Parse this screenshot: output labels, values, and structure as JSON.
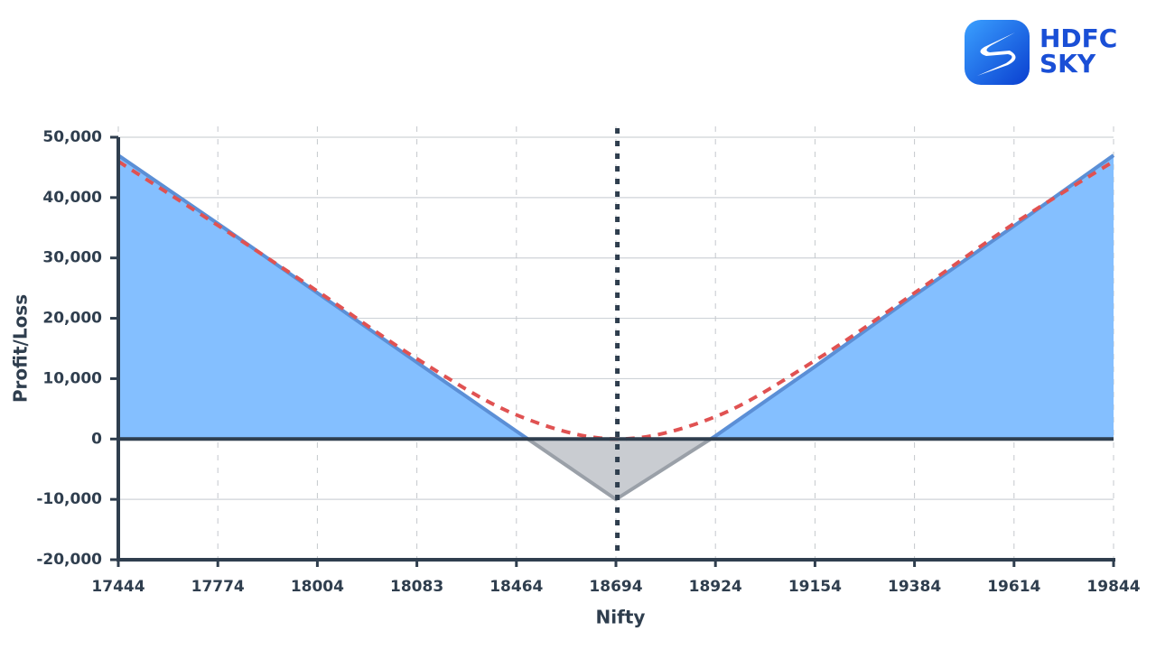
{
  "logo": {
    "line1": "HDFC",
    "line2": "SKY"
  },
  "chart_data": {
    "type": "line",
    "xlabel": "Nifty",
    "ylabel": "Profit/Loss",
    "categories": [
      "17444",
      "17774",
      "18004",
      "18083",
      "18464",
      "18694",
      "18924",
      "19154",
      "19384",
      "19614",
      "19844"
    ],
    "series": [
      {
        "color": "#5b8fd6",
        "fill": "#84bfff",
        "loss_color": "#9aa0a8",
        "loss_fill": "#c9ccd1",
        "style": "solid",
        "values": [
          47000,
          35700,
          24200,
          12700,
          1300,
          -10000,
          500,
          12000,
          23800,
          35300,
          47000
        ]
      },
      {
        "color": "#e05252",
        "style": "dashed",
        "values": [
          46000,
          35400,
          24500,
          13300,
          4000,
          0,
          3700,
          13000,
          24200,
          35700,
          46000
        ]
      }
    ],
    "ylim": [
      -20000,
      50000
    ],
    "yticks": [
      {
        "value": 50000,
        "label": "50,000"
      },
      {
        "value": 40000,
        "label": "40,000"
      },
      {
        "value": 30000,
        "label": "30,000"
      },
      {
        "value": 20000,
        "label": "20,000"
      },
      {
        "value": 10000,
        "label": "10,000"
      },
      0,
      {
        "value": -10000,
        "label": "-10,000"
      },
      {
        "value": -20000,
        "label": "-20,000"
      }
    ],
    "grid": true
  }
}
